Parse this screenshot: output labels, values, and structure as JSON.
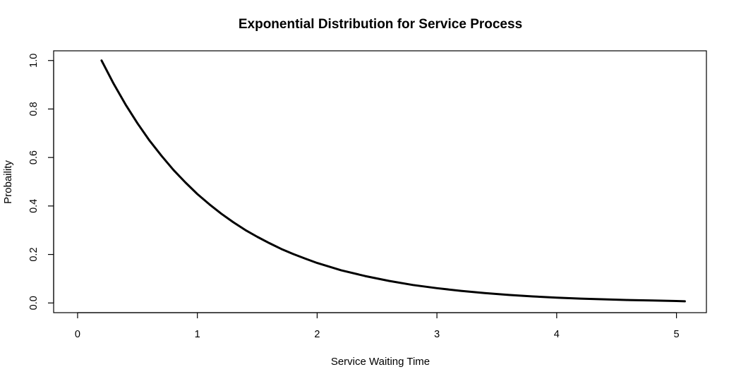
{
  "chart_data": {
    "type": "line",
    "title": "Exponential Distribution for Service Process",
    "xlabel": "Service Waiting Time",
    "ylabel": "Probaility",
    "xlim": [
      -0.2,
      5.25
    ],
    "ylim": [
      -0.04,
      1.04
    ],
    "xticks": [
      0,
      1,
      2,
      3,
      4,
      5
    ],
    "yticks": [
      0.0,
      0.2,
      0.4,
      0.6,
      0.8,
      1.0
    ],
    "xtick_labels": [
      "0",
      "1",
      "2",
      "3",
      "4",
      "5"
    ],
    "ytick_labels": [
      "0.0",
      "0.2",
      "0.4",
      "0.6",
      "0.8",
      "1.0"
    ],
    "grid": false,
    "legend": "none",
    "series": [
      {
        "color": "#000000",
        "x": [
          0.2,
          0.3,
          0.4,
          0.5,
          0.6,
          0.7,
          0.8,
          0.9,
          1.0,
          1.1,
          1.2,
          1.3,
          1.4,
          1.5,
          1.6,
          1.7,
          1.8,
          1.9,
          2.0,
          2.2,
          2.4,
          2.6,
          2.8,
          3.0,
          3.2,
          3.4,
          3.6,
          3.8,
          4.0,
          4.2,
          4.4,
          4.6,
          4.8,
          5.0,
          5.07
        ],
        "y": [
          1.0,
          0.905,
          0.819,
          0.741,
          0.67,
          0.607,
          0.549,
          0.497,
          0.449,
          0.407,
          0.368,
          0.333,
          0.301,
          0.273,
          0.247,
          0.223,
          0.202,
          0.183,
          0.165,
          0.135,
          0.111,
          0.091,
          0.074,
          0.061,
          0.05,
          0.041,
          0.033,
          0.027,
          0.022,
          0.018,
          0.015,
          0.012,
          0.01,
          0.008,
          0.007
        ]
      }
    ]
  }
}
